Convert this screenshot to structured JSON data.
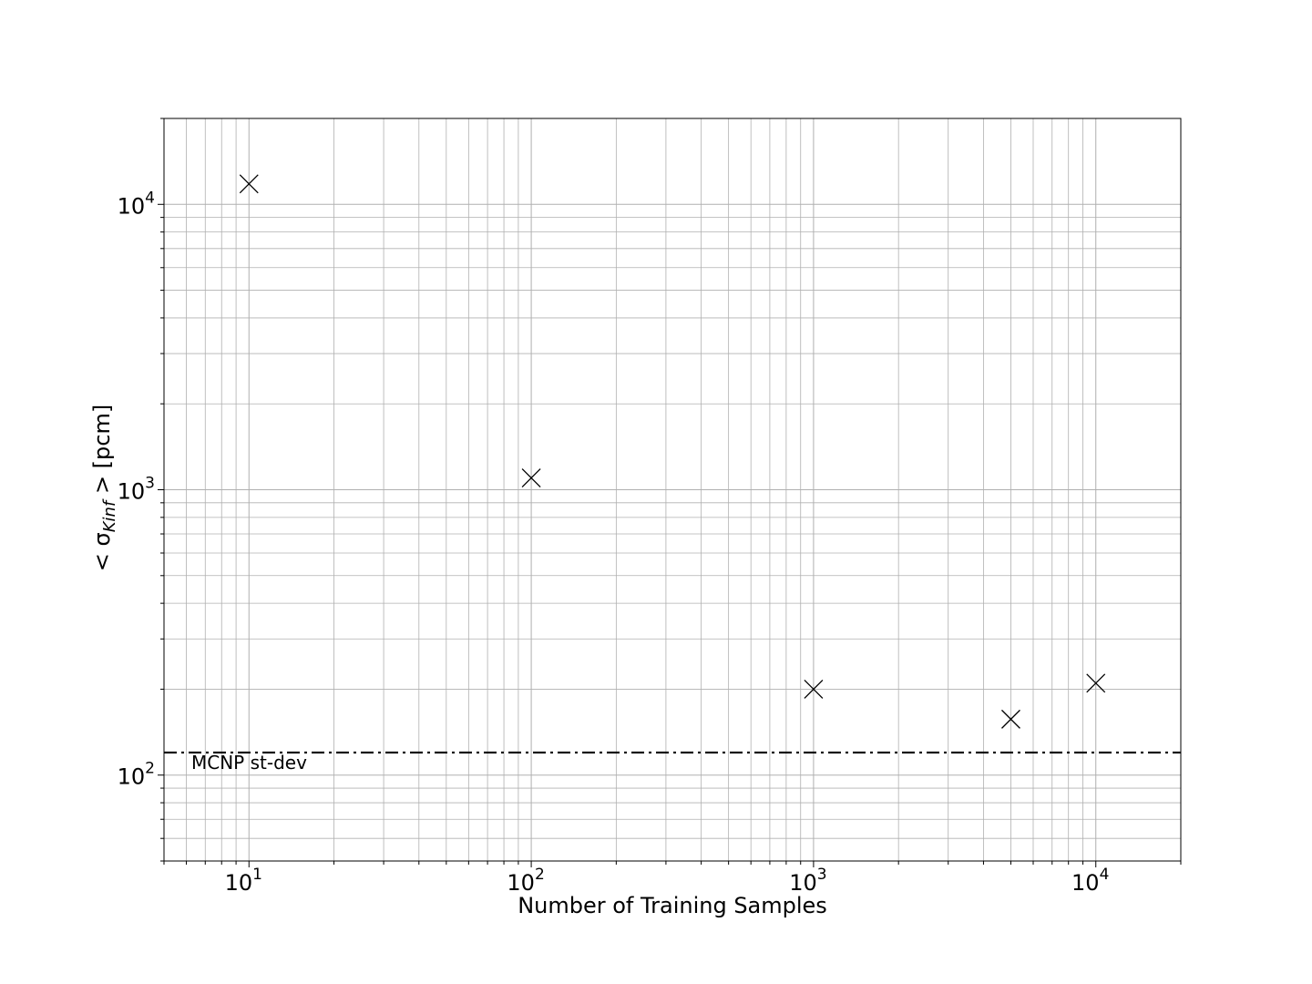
{
  "chart_data": {
    "type": "scatter",
    "title": "",
    "xlabel": "Number of Training Samples",
    "ylabel": {
      "prefix": "< σ",
      "subscript": "Kinf",
      "suffix": " >  [pcm]"
    },
    "xscale": "log",
    "yscale": "log",
    "xlim": [
      5,
      20000
    ],
    "ylim": [
      50,
      20000
    ],
    "grid": true,
    "grid_minor": true,
    "x_ticks": [
      {
        "value": 10,
        "base": "10",
        "exp": "1"
      },
      {
        "value": 100,
        "base": "10",
        "exp": "2"
      },
      {
        "value": 1000,
        "base": "10",
        "exp": "3"
      },
      {
        "value": 10000,
        "base": "10",
        "exp": "4"
      }
    ],
    "y_ticks": [
      {
        "value": 100,
        "base": "10",
        "exp": "2"
      },
      {
        "value": 1000,
        "base": "10",
        "exp": "3"
      },
      {
        "value": 10000,
        "base": "10",
        "exp": "4"
      }
    ],
    "marker": "x",
    "marker_color": "#000000",
    "points": [
      {
        "x": 10,
        "y": 11800
      },
      {
        "x": 100,
        "y": 1100
      },
      {
        "x": 1000,
        "y": 200
      },
      {
        "x": 5000,
        "y": 157
      },
      {
        "x": 10000,
        "y": 210
      }
    ],
    "reference_line": {
      "y": 120,
      "style": "dash-dot",
      "color": "#000000",
      "label": "MCNP st-dev"
    },
    "grid_color": "#b0b0b0"
  }
}
